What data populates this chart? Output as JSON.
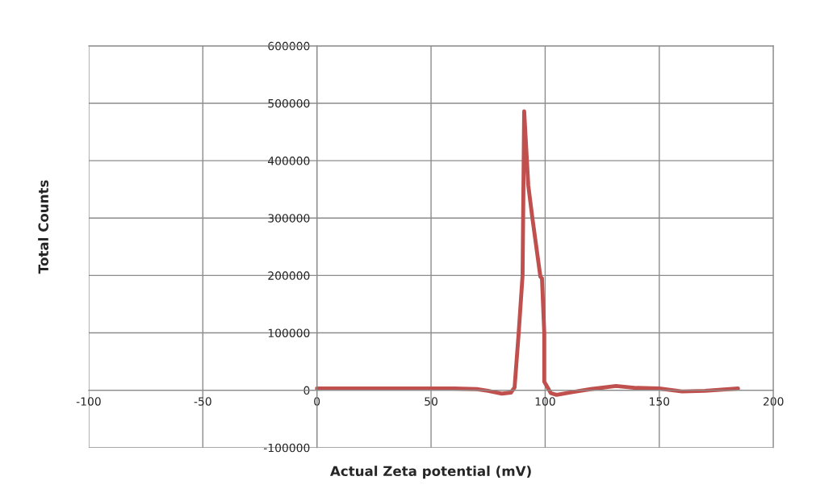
{
  "chart_data": {
    "type": "line",
    "xlabel": "Actual Zeta potential (mV)",
    "ylabel": "Total Counts",
    "series": [
      {
        "color": "#c0504d",
        "x": [
          0,
          20,
          40,
          60,
          70,
          75,
          81,
          85,
          86.6,
          88.4,
          90.1,
          90.8,
          92.6,
          94.4,
          97.9,
          98.6,
          99.6,
          99.6,
          102.5,
          105,
          112,
          120,
          131,
          140,
          150,
          160,
          170,
          184.5
        ],
        "values": [
          3000,
          3000,
          3000,
          3000,
          2000,
          -1000,
          -6000,
          -4000,
          5000,
          100000,
          200000,
          486000,
          357000,
          300000,
          198000,
          195000,
          100000,
          15000,
          -5000,
          -8000,
          -3000,
          2000,
          7500,
          4000,
          3000,
          -2000,
          -1000,
          3000
        ]
      }
    ],
    "xlim": [
      -100,
      200
    ],
    "xticks": [
      -100,
      -50,
      0,
      50,
      100,
      150,
      200
    ],
    "ylim": [
      -100000,
      600000
    ],
    "yticks": [
      -100000,
      0,
      100000,
      200000,
      300000,
      400000,
      500000,
      600000
    ],
    "grid": true,
    "legend": false
  }
}
